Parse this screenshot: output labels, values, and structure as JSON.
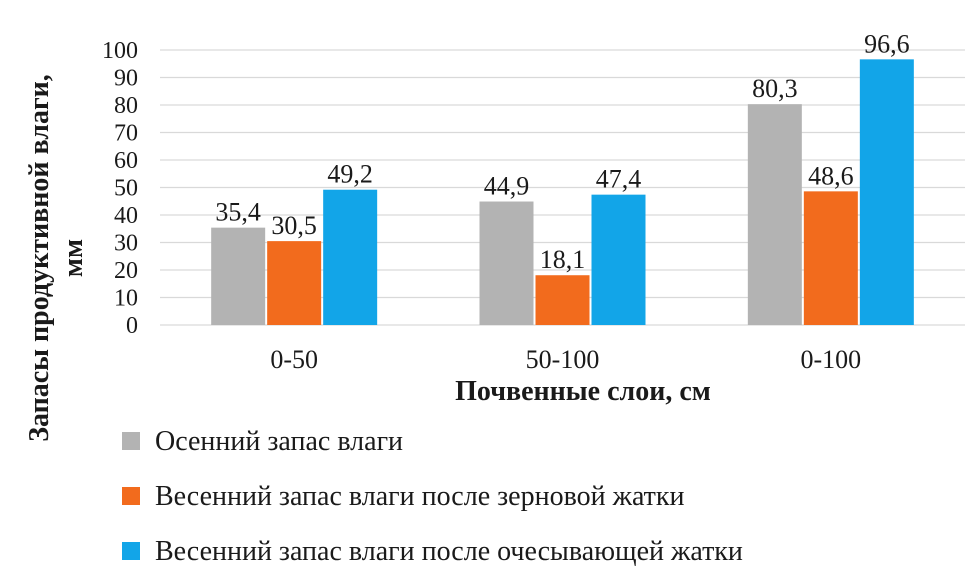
{
  "chart_data": {
    "type": "bar",
    "categories": [
      "0-50",
      "50-100",
      "0-100"
    ],
    "series": [
      {
        "name": "Осенний запас влаги",
        "color": "#b3b3b3",
        "values": [
          35.4,
          44.9,
          80.3
        ],
        "labels": [
          "35,4",
          "44,9",
          "80,3"
        ]
      },
      {
        "name": "Весенний запас влаги после зерновой жатки",
        "color": "#f26b1d",
        "values": [
          30.5,
          18.1,
          48.6
        ],
        "labels": [
          "30,5",
          "18,1",
          "48,6"
        ]
      },
      {
        "name": "Весенний запас влаги после очесывающей жатки",
        "color": "#12a5e8",
        "values": [
          49.2,
          47.4,
          96.6
        ],
        "labels": [
          "49,2",
          "47,4",
          "96,6"
        ]
      }
    ],
    "xlabel": "Почвенные слои, см",
    "ylabel_line1": "Запасы продуктивной влаги,",
    "ylabel_line2": "мм",
    "ylim": [
      0,
      100
    ],
    "yticks": [
      "0",
      "10",
      "20",
      "30",
      "40",
      "50",
      "60",
      "70",
      "80",
      "90",
      "100"
    ],
    "grid": true,
    "legend_position": "bottom"
  }
}
